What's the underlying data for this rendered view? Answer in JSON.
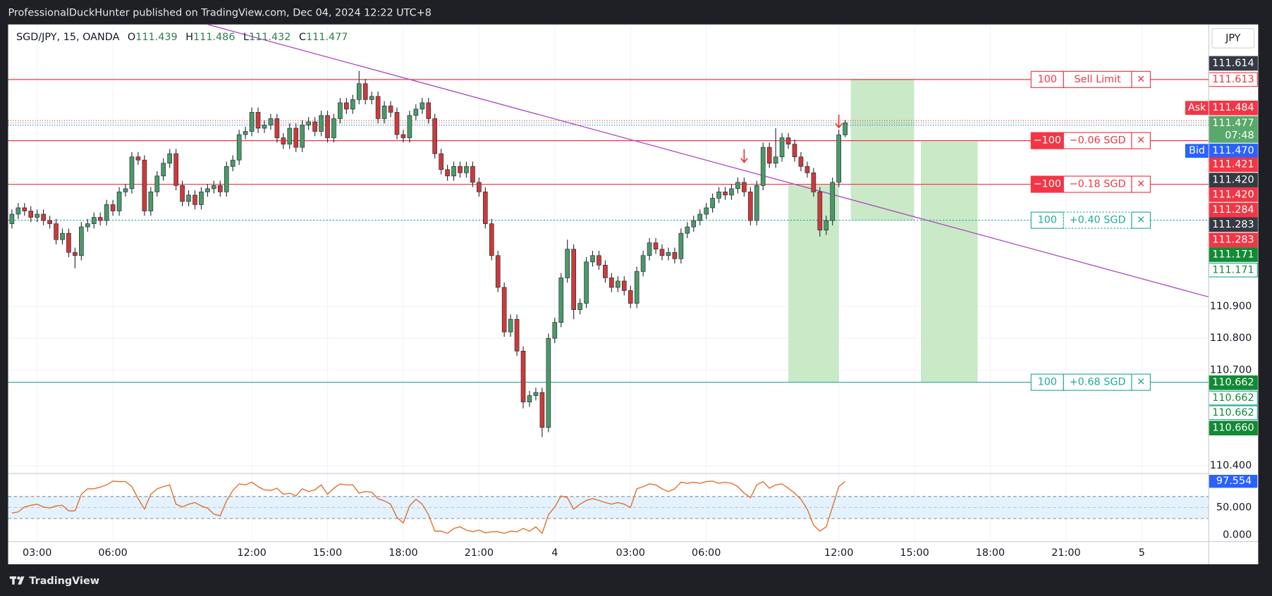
{
  "chart_data": {
    "type": "candlestick",
    "published": "ProfessionalDuckHunter published on TradingView.com, Dec 04, 2024 12:22 UTC+8",
    "symbol": "SGD/JPY, 15, OANDA",
    "header_labels": [
      "O",
      "H",
      "L",
      "C"
    ],
    "currency": "JPY",
    "brand": "TradingView",
    "up_color": "#4a9a68",
    "down_color": "#cc3a3a",
    "wick_color": "#2a2e39",
    "ylim": [
      110.378,
      111.786
    ],
    "yticks": [
      {
        "value": 110.9,
        "label": "110.900"
      },
      {
        "value": 110.8,
        "label": "110.800"
      },
      {
        "value": 110.7,
        "label": "110.700"
      },
      {
        "value": 110.4,
        "label": "110.400"
      }
    ],
    "xlim": [
      -0.6,
      189.6
    ],
    "xticks": [
      {
        "value": 4,
        "label": "03:00"
      },
      {
        "value": 16,
        "label": "06:00"
      },
      {
        "value": 38,
        "label": "12:00"
      },
      {
        "value": 50,
        "label": "15:00"
      },
      {
        "value": 62,
        "label": "18:00"
      },
      {
        "value": 74,
        "label": "21:00"
      },
      {
        "value": 86,
        "label": "4"
      },
      {
        "value": 98,
        "label": "03:00"
      },
      {
        "value": 110,
        "label": "06:00"
      },
      {
        "value": 131,
        "label": "12:00"
      },
      {
        "value": 143,
        "label": "15:00"
      },
      {
        "value": 155,
        "label": "18:00"
      },
      {
        "value": 167,
        "label": "21:00"
      },
      {
        "value": 179,
        "label": "5"
      }
    ],
    "grid": true,
    "ohlc": [
      [
        111.16,
        111.205,
        111.145,
        111.19
      ],
      [
        111.19,
        111.225,
        111.175,
        111.21
      ],
      [
        111.21,
        111.225,
        111.185,
        111.2
      ],
      [
        111.2,
        111.215,
        111.165,
        111.18
      ],
      [
        111.18,
        111.205,
        111.165,
        111.19
      ],
      [
        111.19,
        111.205,
        111.155,
        111.17
      ],
      [
        111.17,
        111.185,
        111.145,
        111.16
      ],
      [
        111.16,
        111.175,
        111.095,
        111.11
      ],
      [
        111.11,
        111.145,
        111.095,
        111.13
      ],
      [
        111.13,
        111.145,
        111.055,
        111.07
      ],
      [
        111.07,
        111.085,
        111.02,
        111.06
      ],
      [
        111.06,
        111.165,
        111.045,
        111.15
      ],
      [
        111.15,
        111.175,
        111.135,
        111.16
      ],
      [
        111.16,
        111.195,
        111.145,
        111.18
      ],
      [
        111.18,
        111.195,
        111.155,
        111.17
      ],
      [
        111.17,
        111.235,
        111.155,
        111.22
      ],
      [
        111.22,
        111.235,
        111.185,
        111.2
      ],
      [
        111.2,
        111.275,
        111.185,
        111.26
      ],
      [
        111.26,
        111.285,
        111.245,
        111.27
      ],
      [
        111.27,
        111.385,
        111.255,
        111.37
      ],
      [
        111.37,
        111.385,
        111.345,
        111.36
      ],
      [
        111.36,
        111.375,
        111.185,
        111.2
      ],
      [
        111.2,
        111.275,
        111.185,
        111.26
      ],
      [
        111.26,
        111.325,
        111.245,
        111.31
      ],
      [
        111.31,
        111.365,
        111.295,
        111.35
      ],
      [
        111.35,
        111.395,
        111.335,
        111.38
      ],
      [
        111.38,
        111.395,
        111.265,
        111.28
      ],
      [
        111.28,
        111.295,
        111.215,
        111.23
      ],
      [
        111.23,
        111.265,
        111.215,
        111.25
      ],
      [
        111.25,
        111.265,
        111.205,
        111.22
      ],
      [
        111.22,
        111.275,
        111.205,
        111.26
      ],
      [
        111.26,
        111.285,
        111.245,
        111.27
      ],
      [
        111.27,
        111.295,
        111.255,
        111.28
      ],
      [
        111.28,
        111.295,
        111.245,
        111.26
      ],
      [
        111.26,
        111.355,
        111.245,
        111.34
      ],
      [
        111.34,
        111.375,
        111.325,
        111.36
      ],
      [
        111.36,
        111.455,
        111.345,
        111.44
      ],
      [
        111.44,
        111.465,
        111.425,
        111.45
      ],
      [
        111.45,
        111.525,
        111.435,
        111.51
      ],
      [
        111.51,
        111.525,
        111.445,
        111.46
      ],
      [
        111.46,
        111.485,
        111.445,
        111.47
      ],
      [
        111.47,
        111.505,
        111.455,
        111.49
      ],
      [
        111.49,
        111.505,
        111.415,
        111.43
      ],
      [
        111.43,
        111.445,
        111.395,
        111.41
      ],
      [
        111.41,
        111.475,
        111.395,
        111.46
      ],
      [
        111.46,
        111.475,
        111.385,
        111.4
      ],
      [
        111.4,
        111.485,
        111.385,
        111.47
      ],
      [
        111.47,
        111.495,
        111.455,
        111.48
      ],
      [
        111.48,
        111.495,
        111.435,
        111.45
      ],
      [
        111.45,
        111.515,
        111.435,
        111.5
      ],
      [
        111.5,
        111.515,
        111.415,
        111.43
      ],
      [
        111.43,
        111.505,
        111.415,
        111.49
      ],
      [
        111.49,
        111.555,
        111.475,
        111.54
      ],
      [
        111.54,
        111.555,
        111.505,
        111.52
      ],
      [
        111.52,
        111.565,
        111.505,
        111.55
      ],
      [
        111.55,
        111.64,
        111.535,
        111.6
      ],
      [
        111.6,
        111.615,
        111.535,
        111.55
      ],
      [
        111.55,
        111.575,
        111.535,
        111.56
      ],
      [
        111.56,
        111.575,
        111.475,
        111.49
      ],
      [
        111.49,
        111.545,
        111.475,
        111.53
      ],
      [
        111.53,
        111.545,
        111.495,
        111.51
      ],
      [
        111.51,
        111.525,
        111.425,
        111.44
      ],
      [
        111.44,
        111.455,
        111.415,
        111.43
      ],
      [
        111.43,
        111.515,
        111.415,
        111.5
      ],
      [
        111.5,
        111.535,
        111.485,
        111.52
      ],
      [
        111.52,
        111.555,
        111.505,
        111.54
      ],
      [
        111.54,
        111.555,
        111.475,
        111.49
      ],
      [
        111.49,
        111.505,
        111.365,
        111.38
      ],
      [
        111.38,
        111.395,
        111.315,
        111.33
      ],
      [
        111.33,
        111.345,
        111.295,
        111.31
      ],
      [
        111.31,
        111.355,
        111.295,
        111.34
      ],
      [
        111.34,
        111.355,
        111.305,
        111.32
      ],
      [
        111.32,
        111.355,
        111.305,
        111.34
      ],
      [
        111.34,
        111.355,
        111.275,
        111.29
      ],
      [
        111.29,
        111.305,
        111.245,
        111.26
      ],
      [
        111.26,
        111.275,
        111.145,
        111.16
      ],
      [
        111.16,
        111.175,
        111.045,
        111.06
      ],
      [
        111.06,
        111.075,
        110.945,
        110.96
      ],
      [
        110.96,
        110.975,
        110.805,
        110.82
      ],
      [
        110.82,
        110.875,
        110.805,
        110.86
      ],
      [
        110.86,
        110.875,
        110.745,
        110.76
      ],
      [
        110.76,
        110.775,
        110.58,
        110.6
      ],
      [
        110.6,
        110.635,
        110.585,
        110.62
      ],
      [
        110.62,
        110.645,
        110.605,
        110.63
      ],
      [
        110.63,
        110.645,
        110.49,
        110.52
      ],
      [
        110.52,
        110.815,
        110.505,
        110.8
      ],
      [
        110.8,
        110.865,
        110.785,
        110.85
      ],
      [
        110.85,
        111.005,
        110.835,
        110.99
      ],
      [
        110.99,
        111.11,
        110.975,
        111.08
      ],
      [
        111.08,
        111.095,
        110.86,
        110.89
      ],
      [
        110.89,
        110.925,
        110.875,
        110.91
      ],
      [
        110.91,
        111.055,
        110.895,
        111.04
      ],
      [
        111.04,
        111.075,
        111.025,
        111.06
      ],
      [
        111.06,
        111.075,
        111.015,
        111.03
      ],
      [
        111.03,
        111.045,
        110.975,
        110.99
      ],
      [
        110.99,
        111.005,
        110.945,
        110.96
      ],
      [
        110.96,
        110.995,
        110.945,
        110.98
      ],
      [
        110.98,
        110.995,
        110.935,
        110.95
      ],
      [
        110.95,
        110.965,
        110.895,
        110.91
      ],
      [
        110.91,
        111.025,
        110.895,
        111.01
      ],
      [
        111.01,
        111.075,
        110.995,
        111.06
      ],
      [
        111.06,
        111.115,
        111.045,
        111.1
      ],
      [
        111.1,
        111.115,
        111.065,
        111.08
      ],
      [
        111.08,
        111.095,
        111.045,
        111.06
      ],
      [
        111.06,
        111.085,
        111.045,
        111.07
      ],
      [
        111.07,
        111.085,
        111.035,
        111.05
      ],
      [
        111.05,
        111.145,
        111.035,
        111.13
      ],
      [
        111.13,
        111.165,
        111.115,
        111.15
      ],
      [
        111.15,
        111.185,
        111.135,
        111.17
      ],
      [
        111.17,
        111.205,
        111.155,
        111.19
      ],
      [
        111.19,
        111.225,
        111.175,
        111.21
      ],
      [
        111.21,
        111.255,
        111.195,
        111.24
      ],
      [
        111.24,
        111.275,
        111.225,
        111.26
      ],
      [
        111.26,
        111.275,
        111.235,
        111.25
      ],
      [
        111.25,
        111.285,
        111.235,
        111.27
      ],
      [
        111.27,
        111.305,
        111.255,
        111.29
      ],
      [
        111.29,
        111.305,
        111.245,
        111.26
      ],
      [
        111.26,
        111.275,
        111.155,
        111.17
      ],
      [
        111.17,
        111.295,
        111.155,
        111.28
      ],
      [
        111.28,
        111.415,
        111.265,
        111.4
      ],
      [
        111.4,
        111.415,
        111.335,
        111.35
      ],
      [
        111.35,
        111.46,
        111.335,
        111.37
      ],
      [
        111.37,
        111.445,
        111.355,
        111.43
      ],
      [
        111.43,
        111.445,
        111.395,
        111.41
      ],
      [
        111.41,
        111.425,
        111.355,
        111.37
      ],
      [
        111.37,
        111.385,
        111.325,
        111.34
      ],
      [
        111.34,
        111.355,
        111.305,
        111.32
      ],
      [
        111.32,
        111.335,
        111.245,
        111.26
      ],
      [
        111.26,
        111.275,
        111.12,
        111.14
      ],
      [
        111.14,
        111.185,
        111.125,
        111.17
      ],
      [
        111.17,
        111.305,
        111.155,
        111.29
      ],
      [
        111.29,
        111.455,
        111.275,
        111.439
      ],
      [
        111.439,
        111.486,
        111.432,
        111.477
      ]
    ],
    "trendline": {
      "color": "#b04fc4",
      "points": [
        [
          31,
          111.786
        ],
        [
          189.6,
          110.93
        ]
      ]
    },
    "zones": [
      {
        "x": [
          123,
          131
        ],
        "y": [
          111.282,
          110.663
        ]
      },
      {
        "x": [
          132.9,
          142.9
        ],
        "y": [
          111.615,
          111.17
        ]
      },
      {
        "x": [
          144,
          153
        ],
        "y": [
          111.419,
          110.663
        ]
      }
    ],
    "zone_color": "#c9e9c7",
    "arrows": [
      {
        "x": 116,
        "price": 111.353
      },
      {
        "x": 131,
        "price": 111.462
      }
    ],
    "arrow_color": "#e53935",
    "close_symbol": "✕",
    "orders": [
      {
        "qty": "100",
        "label": "Sell Limit",
        "price": 111.613,
        "color": "#f23645",
        "filled": false,
        "dotted": false
      },
      {
        "qty": "−100",
        "label": "−0.06 SGD",
        "price": 111.421,
        "color": "#f23645",
        "filled": true,
        "dotted": false
      },
      {
        "qty": "−100",
        "label": "−0.18 SGD",
        "price": 111.284,
        "color": "#f23645",
        "filled": true,
        "dotted": false
      },
      {
        "qty": "100",
        "label": "+0.40 SGD",
        "price": 111.171,
        "color": "#22ab94",
        "filled": false,
        "dotted": true
      },
      {
        "qty": "100",
        "label": "+0.68 SGD",
        "price": 110.662,
        "color": "#22ab94",
        "filled": false,
        "dotted": false
      }
    ],
    "badges": [
      {
        "value": 111.614,
        "label": "111.614",
        "style": "dark"
      },
      {
        "value": 111.613,
        "label": "111.613",
        "style": "redline"
      },
      {
        "value": 111.484,
        "label": "111.484",
        "style": "red",
        "tag": "Ask",
        "dotted": "#f23645"
      },
      {
        "value": 111.477,
        "label": "111.477",
        "style": "last",
        "sub": "07:48",
        "dotted": "#4caf50"
      },
      {
        "value": 111.47,
        "label": "111.470",
        "style": "blue",
        "tag": "Bid",
        "dotted": "#2962ff"
      },
      {
        "value": 111.421,
        "label": "111.421",
        "style": "red"
      },
      {
        "value": 111.42,
        "label": "111.420",
        "style": "dark"
      },
      {
        "value": 111.42,
        "label": "111.420",
        "style": "red"
      },
      {
        "value": 111.284,
        "label": "111.284",
        "style": "red"
      },
      {
        "value": 111.283,
        "label": "111.283",
        "style": "dark"
      },
      {
        "value": 111.283,
        "label": "111.283",
        "style": "red"
      },
      {
        "value": 111.171,
        "label": "111.171",
        "style": "green"
      },
      {
        "value": 111.171,
        "label": "111.171",
        "style": "greenline"
      },
      {
        "value": 110.662,
        "label": "110.662",
        "style": "green"
      },
      {
        "value": 110.662,
        "label": "110.662",
        "style": "greenline"
      },
      {
        "value": 110.662,
        "label": "110.662",
        "style": "greenline"
      },
      {
        "value": 110.66,
        "label": "110.660",
        "style": "green"
      }
    ],
    "rsi": {
      "color": "#e0702a",
      "band_color": "#e3f2fd",
      "ylim": [
        -11.8,
        110.3
      ],
      "levels": [
        30,
        70
      ],
      "yticks": [
        {
          "value": 50,
          "label": "50.000"
        },
        {
          "value": 0,
          "label": "0.000"
        }
      ],
      "last_label": "97.554",
      "values": [
        40,
        42,
        51,
        54,
        56,
        51,
        49,
        53,
        54,
        44,
        44,
        74,
        84,
        84,
        87,
        91,
        98,
        97,
        97,
        88,
        66,
        47,
        74,
        84,
        88,
        91,
        56,
        51,
        56,
        59,
        53,
        49,
        38,
        35,
        62,
        81,
        93,
        91,
        96,
        88,
        82,
        81,
        85,
        74,
        76,
        71,
        84,
        79,
        82,
        91,
        74,
        85,
        93,
        91,
        91,
        76,
        79,
        78,
        66,
        62,
        56,
        32,
        22,
        53,
        65,
        56,
        37,
        7,
        7,
        3,
        12,
        15,
        9,
        6,
        9,
        4,
        6,
        6,
        3,
        7,
        6,
        12,
        7,
        15,
        3,
        37,
        51,
        71,
        68,
        47,
        56,
        63,
        66,
        63,
        59,
        56,
        59,
        56,
        50,
        84,
        88,
        93,
        91,
        84,
        79,
        84,
        96,
        94,
        96,
        94,
        97,
        98,
        94,
        96,
        94,
        88,
        76,
        68,
        91,
        97,
        85,
        91,
        93,
        85,
        76,
        65,
        47,
        18,
        7,
        15,
        51,
        88,
        97.554
      ]
    }
  }
}
